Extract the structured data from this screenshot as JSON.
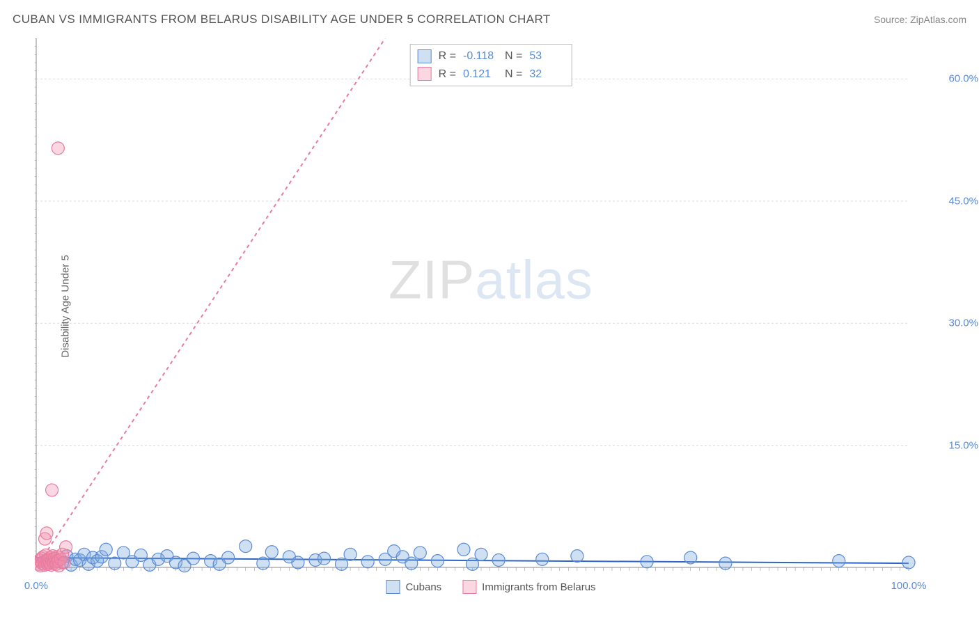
{
  "header": {
    "title": "CUBAN VS IMMIGRANTS FROM BELARUS DISABILITY AGE UNDER 5 CORRELATION CHART",
    "source": "Source: ZipAtlas.com"
  },
  "watermark": {
    "part1": "ZIP",
    "part2": "atlas"
  },
  "chart": {
    "type": "scatter",
    "ylabel": "Disability Age Under 5",
    "background_color": "#ffffff",
    "grid_color": "#d9d9d9",
    "axis_color": "#888888",
    "tick_color": "#888888",
    "xlim": [
      0,
      100
    ],
    "ylim": [
      0,
      65
    ],
    "xticks_pct": [
      0.0,
      100.0
    ],
    "yticks_pct": [
      15.0,
      30.0,
      45.0,
      60.0
    ],
    "minor_xtick_step": 1.0,
    "minor_ytick_step": 1.0,
    "series": [
      {
        "id": "cubans",
        "label": "Cubans",
        "marker_fill": "rgba(120,165,220,0.35)",
        "marker_stroke": "#5b8bd4",
        "marker_radius": 9,
        "trend_color": "#2e66c4",
        "trend_dash": "none",
        "trend": {
          "x1": 0,
          "y1": 1.2,
          "x2": 100,
          "y2": 0.5
        },
        "R": "-0.118",
        "N": "53",
        "points": [
          [
            1,
            0.8
          ],
          [
            2,
            1.1
          ],
          [
            3,
            0.6
          ],
          [
            3.5,
            1.4
          ],
          [
            4,
            0.3
          ],
          [
            4.5,
            1.0
          ],
          [
            5,
            0.9
          ],
          [
            5.5,
            1.6
          ],
          [
            6,
            0.4
          ],
          [
            6.5,
            1.2
          ],
          [
            7,
            0.8
          ],
          [
            7.5,
            1.3
          ],
          [
            8,
            2.2
          ],
          [
            9,
            0.5
          ],
          [
            10,
            1.8
          ],
          [
            11,
            0.7
          ],
          [
            12,
            1.5
          ],
          [
            13,
            0.3
          ],
          [
            14,
            1.0
          ],
          [
            15,
            1.4
          ],
          [
            16,
            0.6
          ],
          [
            17,
            0.2
          ],
          [
            18,
            1.1
          ],
          [
            20,
            0.8
          ],
          [
            21,
            0.4
          ],
          [
            22,
            1.2
          ],
          [
            24,
            2.6
          ],
          [
            26,
            0.5
          ],
          [
            27,
            1.9
          ],
          [
            29,
            1.3
          ],
          [
            30,
            0.6
          ],
          [
            32,
            0.9
          ],
          [
            33,
            1.1
          ],
          [
            35,
            0.4
          ],
          [
            36,
            1.6
          ],
          [
            38,
            0.7
          ],
          [
            40,
            1.0
          ],
          [
            41,
            2.0
          ],
          [
            42,
            1.3
          ],
          [
            43,
            0.5
          ],
          [
            44,
            1.8
          ],
          [
            46,
            0.8
          ],
          [
            49,
            2.2
          ],
          [
            50,
            0.4
          ],
          [
            51,
            1.6
          ],
          [
            53,
            0.9
          ],
          [
            58,
            1.0
          ],
          [
            62,
            1.4
          ],
          [
            70,
            0.7
          ],
          [
            75,
            1.2
          ],
          [
            79,
            0.5
          ],
          [
            92,
            0.8
          ],
          [
            100,
            0.6
          ]
        ]
      },
      {
        "id": "belarus",
        "label": "Immigrants from Belarus",
        "marker_fill": "rgba(240,140,170,0.35)",
        "marker_stroke": "#e87ba0",
        "marker_radius": 9,
        "trend_color": "#e87ba0",
        "trend_dash": "5,5",
        "trend": {
          "x1": 0,
          "y1": 0,
          "x2": 40,
          "y2": 65
        },
        "R": "0.121",
        "N": "32",
        "points": [
          [
            0.3,
            0.4
          ],
          [
            0.4,
            0.9
          ],
          [
            0.5,
            0.2
          ],
          [
            0.6,
            1.1
          ],
          [
            0.7,
            0.5
          ],
          [
            0.8,
            1.3
          ],
          [
            0.9,
            0.7
          ],
          [
            1.0,
            0.3
          ],
          [
            1.1,
            1.5
          ],
          [
            1.2,
            0.8
          ],
          [
            1.3,
            0.4
          ],
          [
            1.4,
            1.0
          ],
          [
            1.5,
            0.6
          ],
          [
            1.6,
            1.2
          ],
          [
            1.7,
            0.3
          ],
          [
            1.8,
            0.9
          ],
          [
            1.9,
            1.4
          ],
          [
            2.0,
            0.5
          ],
          [
            2.1,
            1.1
          ],
          [
            2.2,
            0.7
          ],
          [
            2.3,
            0.4
          ],
          [
            2.4,
            1.3
          ],
          [
            2.5,
            0.8
          ],
          [
            2.6,
            0.2
          ],
          [
            2.8,
            1.0
          ],
          [
            3.0,
            1.6
          ],
          [
            3.2,
            0.6
          ],
          [
            3.4,
            2.5
          ],
          [
            1.0,
            3.5
          ],
          [
            1.2,
            4.2
          ],
          [
            1.8,
            9.5
          ],
          [
            2.5,
            51.5
          ]
        ]
      }
    ],
    "stats_box": {
      "r_label": "R =",
      "n_label": "N ="
    },
    "ytick_label_color": "#5b8bd4",
    "xtick_label_color": "#5b8bd4",
    "label_fontsize": 15
  }
}
